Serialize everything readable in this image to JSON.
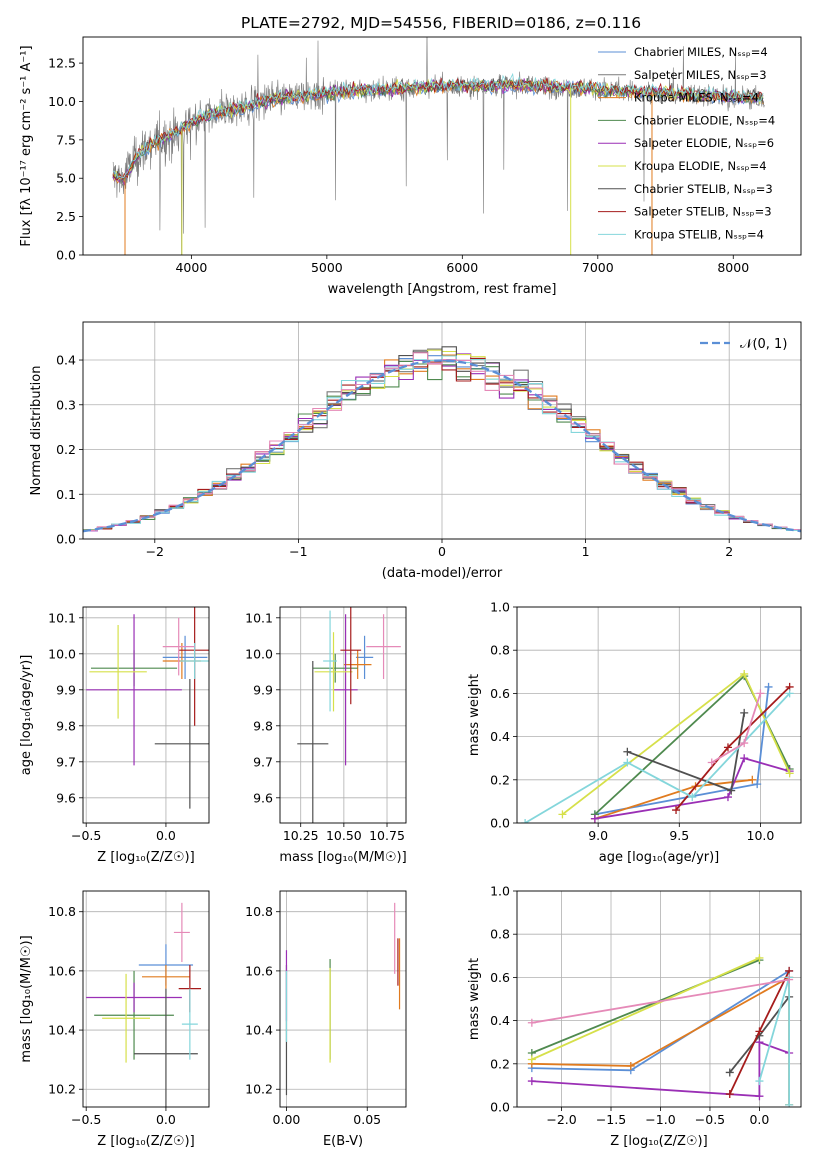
{
  "title": "PLATE=2792, MJD=54556, FIBERID=0186, z=0.116",
  "colors": {
    "chab_miles": "#5b8fd6",
    "salp_miles": "#7a7a7a",
    "krou_miles": "#e07b1f",
    "chab_elodie": "#4f8a4f",
    "salp_elodie": "#9a2fb5",
    "krou_elodie": "#d6e04a",
    "chab_stelib": "#505050",
    "salp_stelib": "#a51c1c",
    "krou_stelib": "#84d6db",
    "extra_pink": "#e58ab8"
  },
  "legend_labels": [
    "Chabrier MILES, Nₛₛₚ=4",
    "Salpeter MILES, Nₛₛₚ=3",
    "Kroupa MILES, Nₛₛₚ=4",
    "Chabrier ELODIE, Nₛₛₚ=4",
    "Salpeter ELODIE, Nₛₛₚ=6",
    "Kroupa ELODIE, Nₛₛₚ=4",
    "Chabrier STELIB, Nₛₛₚ=3",
    "Salpeter STELIB, Nₛₛₚ=3",
    "Kroupa STELIB, Nₛₛₚ=4"
  ],
  "chart_data": [
    {
      "id": "spectrum",
      "type": "line",
      "xlabel": "wavelength [Angstrom, rest frame]",
      "ylabel": "Flux [fλ 10⁻¹⁷ erg cm⁻² s⁻¹ A⁻¹]",
      "xlim": [
        3200,
        8500
      ],
      "ylim": [
        0,
        14.2
      ],
      "xticks": [
        4000,
        5000,
        6000,
        7000,
        8000
      ],
      "yticks": [
        "0.0",
        "2.5",
        "5.0",
        "7.5",
        "10.0",
        "12.5"
      ],
      "continuum": [
        [
          3420,
          5.2
        ],
        [
          3500,
          4.9
        ],
        [
          3600,
          6.4
        ],
        [
          3700,
          7.2
        ],
        [
          3800,
          7.6
        ],
        [
          3900,
          8.0
        ],
        [
          4000,
          8.7
        ],
        [
          4200,
          9.3
        ],
        [
          4400,
          9.6
        ],
        [
          4600,
          10.2
        ],
        [
          4800,
          10.3
        ],
        [
          5000,
          10.5
        ],
        [
          5200,
          10.7
        ],
        [
          5500,
          10.8
        ],
        [
          5800,
          11.0
        ],
        [
          6000,
          11.0
        ],
        [
          6300,
          11.1
        ],
        [
          6600,
          11.0
        ],
        [
          7000,
          10.8
        ],
        [
          7400,
          10.6
        ],
        [
          7800,
          10.4
        ],
        [
          8230,
          10.2
        ]
      ]
    },
    {
      "id": "residuals",
      "type": "step",
      "xlabel": "(data-model)/error",
      "ylabel": "Normed distribution",
      "legend": "𝒩(0, 1)",
      "xlim": [
        -2.5,
        2.5
      ],
      "ylim": [
        0,
        0.485
      ],
      "xticks": [
        "−2",
        "−1",
        "0",
        "1",
        "2"
      ],
      "yticks": [
        "0.0",
        "0.1",
        "0.2",
        "0.3",
        "0.4"
      ]
    },
    {
      "id": "age_vs_Z",
      "type": "errorbar",
      "xlabel": "Z [log₁₀(Z/Z☉)]",
      "ylabel": "age  [log₁₀(age/yr)]",
      "xlim": [
        -0.52,
        0.27
      ],
      "ylim": [
        9.53,
        10.13
      ],
      "xticks": [
        "−0.5",
        "0.0"
      ],
      "yticks": [
        "9.6",
        "9.7",
        "9.8",
        "9.9",
        "10.0",
        "10.1"
      ],
      "points": [
        {
          "x": 0.12,
          "y": 9.99,
          "xe": 0.14,
          "ye": 0.06,
          "c": "chab_miles"
        },
        {
          "x": 0.1,
          "y": 9.98,
          "xe": 0.12,
          "ye": 0.05,
          "c": "krou_miles"
        },
        {
          "x": -0.2,
          "y": 9.96,
          "xe": 0.27,
          "ye": 0.05,
          "c": "chab_elodie"
        },
        {
          "x": -0.2,
          "y": 9.9,
          "xe": 0.3,
          "ye": 0.21,
          "c": "salp_elodie"
        },
        {
          "x": -0.3,
          "y": 9.95,
          "xe": 0.18,
          "ye": 0.13,
          "c": "krou_elodie"
        },
        {
          "x": 0.15,
          "y": 9.75,
          "xe": 0.22,
          "ye": 0.18,
          "c": "chab_stelib"
        },
        {
          "x": 0.18,
          "y": 10.01,
          "xe": 0.1,
          "ye": 0.21,
          "c": "salp_stelib"
        },
        {
          "x": 0.18,
          "y": 9.98,
          "xe": 0.09,
          "ye": 0.05,
          "c": "krou_stelib"
        },
        {
          "x": 0.08,
          "y": 10.02,
          "xe": 0.1,
          "ye": 0.08,
          "c": "extra_pink"
        }
      ]
    },
    {
      "id": "age_vs_mass",
      "type": "errorbar",
      "xlabel": "mass [log₁₀(M/M☉)]",
      "ylabel": "",
      "xlim": [
        10.13,
        10.86
      ],
      "ylim": [
        9.53,
        10.13
      ],
      "xticks": [
        "10.25",
        "10.50",
        "10.75"
      ],
      "yticks": [
        "9.6",
        "9.7",
        "9.8",
        "9.9",
        "10.0",
        "10.1"
      ],
      "points": [
        {
          "x": 10.62,
          "y": 9.99,
          "xe": 0.05,
          "ye": 0.06,
          "c": "chab_miles"
        },
        {
          "x": 10.58,
          "y": 9.97,
          "xe": 0.08,
          "ye": 0.04,
          "c": "krou_miles"
        },
        {
          "x": 10.45,
          "y": 9.96,
          "xe": 0.13,
          "ye": 0.04,
          "c": "chab_elodie"
        },
        {
          "x": 10.51,
          "y": 9.9,
          "xe": 0.07,
          "ye": 0.21,
          "c": "salp_elodie"
        },
        {
          "x": 10.44,
          "y": 9.95,
          "xe": 0.11,
          "ye": 0.11,
          "c": "krou_elodie"
        },
        {
          "x": 10.32,
          "y": 9.75,
          "xe": 0.09,
          "ye": 0.23,
          "c": "chab_stelib"
        },
        {
          "x": 10.54,
          "y": 10.01,
          "xe": 0.06,
          "ye": 0.15,
          "c": "salp_stelib"
        },
        {
          "x": 10.42,
          "y": 9.98,
          "xe": 0.04,
          "ye": 0.14,
          "c": "krou_stelib"
        },
        {
          "x": 10.73,
          "y": 10.02,
          "xe": 0.1,
          "ye": 0.09,
          "c": "extra_pink"
        }
      ]
    },
    {
      "id": "weight_vs_age",
      "type": "line",
      "xlabel": "age  [log₁₀(age/yr)]",
      "ylabel": "mass weight",
      "xlim": [
        8.5,
        10.25
      ],
      "ylim": [
        0,
        1.0
      ],
      "xticks": [
        "9.0",
        "9.5",
        "10.0"
      ],
      "yticks": [
        "0.0",
        "0.2",
        "0.4",
        "0.6",
        "0.8",
        "1.0"
      ],
      "series": [
        {
          "c": "chab_miles",
          "pts": [
            [
              8.98,
              0.04
            ],
            [
              9.98,
              0.18
            ],
            [
              10.05,
              0.63
            ]
          ]
        },
        {
          "c": "krou_miles",
          "pts": [
            [
              8.98,
              0.02
            ],
            [
              9.6,
              0.17
            ],
            [
              9.95,
              0.2
            ]
          ]
        },
        {
          "c": "chab_elodie",
          "pts": [
            [
              8.98,
              0.04
            ],
            [
              9.9,
              0.68
            ],
            [
              10.18,
              0.25
            ]
          ]
        },
        {
          "c": "salp_elodie",
          "pts": [
            [
              8.98,
              0.02
            ],
            [
              9.8,
              0.12
            ],
            [
              9.9,
              0.3
            ],
            [
              10.18,
              0.24
            ]
          ]
        },
        {
          "c": "krou_elodie",
          "pts": [
            [
              8.78,
              0.04
            ],
            [
              9.9,
              0.69
            ],
            [
              10.18,
              0.23
            ]
          ]
        },
        {
          "c": "chab_stelib",
          "pts": [
            [
              9.18,
              0.33
            ],
            [
              9.82,
              0.15
            ],
            [
              9.9,
              0.51
            ]
          ]
        },
        {
          "c": "salp_stelib",
          "pts": [
            [
              9.48,
              0.06
            ],
            [
              9.8,
              0.35
            ],
            [
              10.18,
              0.63
            ]
          ]
        },
        {
          "c": "krou_stelib",
          "pts": [
            [
              8.55,
              0.0
            ],
            [
              9.18,
              0.28
            ],
            [
              9.58,
              0.12
            ],
            [
              10.18,
              0.6
            ]
          ]
        },
        {
          "c": "extra_pink",
          "pts": [
            [
              9.7,
              0.28
            ],
            [
              9.9,
              0.37
            ],
            [
              10.0,
              0.6
            ]
          ]
        }
      ]
    },
    {
      "id": "mass_vs_Z",
      "type": "errorbar",
      "xlabel": "Z [log₁₀(Z/Z☉)]",
      "ylabel": "mass [log₁₀(M/M☉)]",
      "xlim": [
        -0.52,
        0.27
      ],
      "ylim": [
        10.14,
        10.87
      ],
      "xticks": [
        "−0.5",
        "0.0"
      ],
      "yticks": [
        "10.2",
        "10.4",
        "10.6",
        "10.8"
      ],
      "points": [
        {
          "x": 0.0,
          "y": 10.62,
          "xe": 0.17,
          "ye": 0.07,
          "c": "chab_miles"
        },
        {
          "x": 0.0,
          "y": 10.58,
          "xe": 0.15,
          "ye": 0.04,
          "c": "krou_miles"
        },
        {
          "x": -0.2,
          "y": 10.45,
          "xe": 0.25,
          "ye": 0.15,
          "c": "chab_elodie"
        },
        {
          "x": -0.2,
          "y": 10.51,
          "xe": 0.3,
          "ye": 0.05,
          "c": "salp_elodie"
        },
        {
          "x": -0.25,
          "y": 10.44,
          "xe": 0.15,
          "ye": 0.15,
          "c": "krou_elodie"
        },
        {
          "x": 0.0,
          "y": 10.32,
          "xe": 0.2,
          "ye": 0.22,
          "c": "chab_stelib"
        },
        {
          "x": 0.15,
          "y": 10.54,
          "xe": 0.07,
          "ye": 0.08,
          "c": "salp_stelib"
        },
        {
          "x": 0.15,
          "y": 10.42,
          "xe": 0.05,
          "ye": 0.12,
          "c": "krou_stelib"
        },
        {
          "x": 0.1,
          "y": 10.73,
          "xe": 0.05,
          "ye": 0.1,
          "c": "extra_pink"
        }
      ]
    },
    {
      "id": "mass_vs_ebv",
      "type": "errorbar",
      "xlabel": "E(B-V)",
      "ylabel": "",
      "xlim": [
        -0.004,
        0.074
      ],
      "ylim": [
        10.14,
        10.87
      ],
      "xticks": [
        "0.00",
        "0.05"
      ],
      "yticks": [
        "10.2",
        "10.4",
        "10.6",
        "10.8"
      ],
      "points": [
        {
          "x": 0.0,
          "y": 10.4,
          "xe": 0,
          "ye": 0.22,
          "c": "chab_stelib"
        },
        {
          "x": 0.0,
          "y": 10.55,
          "xe": 0,
          "ye": 0.12,
          "c": "salp_elodie"
        },
        {
          "x": 0.0,
          "y": 10.48,
          "xe": 0,
          "ye": 0.12,
          "c": "krou_stelib"
        },
        {
          "x": 0.027,
          "y": 10.47,
          "xe": 0,
          "ye": 0.17,
          "c": "chab_elodie"
        },
        {
          "x": 0.027,
          "y": 10.45,
          "xe": 0,
          "ye": 0.16,
          "c": "krou_elodie"
        },
        {
          "x": 0.067,
          "y": 10.71,
          "xe": 0,
          "ye": 0.12,
          "c": "extra_pink"
        },
        {
          "x": 0.069,
          "y": 10.63,
          "xe": 0,
          "ye": 0.08,
          "c": "salp_stelib"
        },
        {
          "x": 0.07,
          "y": 10.59,
          "xe": 0,
          "ye": 0.12,
          "c": "krou_miles"
        }
      ]
    },
    {
      "id": "weight_vs_Z",
      "type": "line",
      "xlabel": "Z [log₁₀(Z/Z☉)]",
      "ylabel": "mass weight",
      "xlim": [
        -2.45,
        0.42
      ],
      "ylim": [
        0,
        1.0
      ],
      "xticks": [
        "−2.0",
        "−1.5",
        "−1.0",
        "−0.5",
        "0.0"
      ],
      "yticks": [
        "0.0",
        "0.2",
        "0.4",
        "0.6",
        "0.8",
        "1.0"
      ],
      "series": [
        {
          "c": "chab_miles",
          "pts": [
            [
              -2.3,
              0.18
            ],
            [
              -1.3,
              0.17
            ],
            [
              0.3,
              0.63
            ]
          ]
        },
        {
          "c": "krou_miles",
          "pts": [
            [
              -2.3,
              0.2
            ],
            [
              -1.3,
              0.19
            ],
            [
              0.3,
              0.6
            ],
            [
              0.3,
              0.01
            ]
          ]
        },
        {
          "c": "chab_elodie",
          "pts": [
            [
              -2.3,
              0.25
            ],
            [
              0.0,
              0.68
            ]
          ]
        },
        {
          "c": "salp_elodie",
          "pts": [
            [
              -2.3,
              0.12
            ],
            [
              0.0,
              0.05
            ],
            [
              0.0,
              0.3
            ],
            [
              0.3,
              0.25
            ]
          ]
        },
        {
          "c": "krou_elodie",
          "pts": [
            [
              -2.3,
              0.22
            ],
            [
              0.0,
              0.69
            ]
          ]
        },
        {
          "c": "chab_stelib",
          "pts": [
            [
              -0.3,
              0.16
            ],
            [
              0.0,
              0.33
            ],
            [
              0.3,
              0.51
            ]
          ]
        },
        {
          "c": "salp_stelib",
          "pts": [
            [
              -0.3,
              0.06
            ],
            [
              0.0,
              0.35
            ],
            [
              0.3,
              0.63
            ]
          ]
        },
        {
          "c": "krou_stelib",
          "pts": [
            [
              0.0,
              0.12
            ],
            [
              0.3,
              0.6
            ],
            [
              0.3,
              0.01
            ]
          ]
        },
        {
          "c": "extra_pink",
          "pts": [
            [
              -2.3,
              0.39
            ],
            [
              0.3,
              0.59
            ]
          ]
        }
      ]
    }
  ]
}
